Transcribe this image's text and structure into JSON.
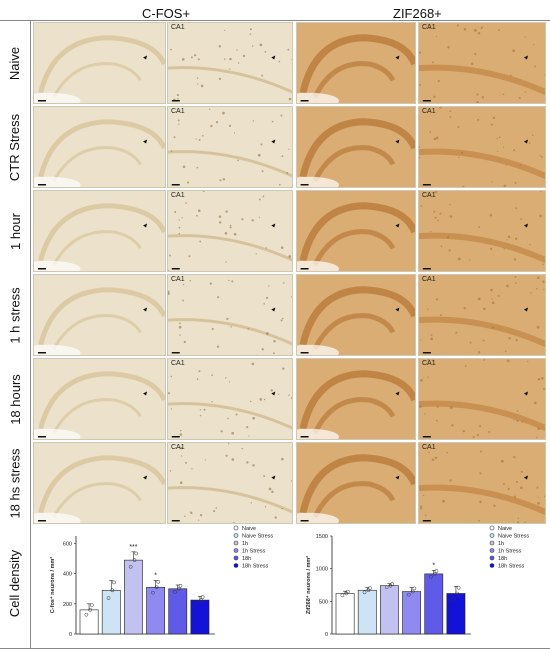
{
  "headers": {
    "left": "C-FOS+",
    "right": "ZIF268+"
  },
  "rows": [
    "Naive",
    "CTR Stress",
    "1 hour",
    "1 h stress",
    "18 hours",
    "18 hs stress",
    "Cell density"
  ],
  "panel_label": "CA1",
  "colors": {
    "cfos_bg": "#ece2cc",
    "zif_bg": "#d9ad73"
  },
  "charts": [
    {
      "ylabel": "C-fos⁺ neurons / mm²",
      "yticks": [
        "0",
        "200",
        "400",
        "600"
      ],
      "ylim": [
        0,
        650
      ],
      "legend": [
        "Naive",
        "Naive Stress",
        "1h",
        "1h Stress",
        "18h",
        "18h Stress"
      ],
      "significance": [
        "",
        "",
        "***",
        "*",
        "",
        ""
      ]
    },
    {
      "ylabel": "Zif268⁺ neurons / mm²",
      "yticks": [
        "0",
        "500",
        "1000",
        "1500"
      ],
      "ylim": [
        0,
        1500
      ],
      "legend": [
        "Naive",
        "Naive Stress",
        "1h",
        "1h Stress",
        "18h",
        "18h Stress"
      ],
      "significance": [
        "",
        "",
        "",
        "",
        "*",
        ""
      ]
    }
  ],
  "chart_data": [
    {
      "type": "bar",
      "categories": [
        "Naive",
        "Naive Stress",
        "1h",
        "1h Stress",
        "18h",
        "18h Stress"
      ],
      "values": [
        160,
        290,
        490,
        310,
        300,
        225
      ],
      "errors": [
        40,
        65,
        55,
        45,
        25,
        25
      ],
      "colors": [
        "#ffffff",
        "#cfe3f7",
        "#c3c1ef",
        "#8f8af0",
        "#5f5ae8",
        "#1412d6"
      ],
      "ylabel": "C-fos⁺ neurons / mm²",
      "ylim": [
        0,
        650
      ]
    },
    {
      "type": "bar",
      "categories": [
        "Naive",
        "Naive Stress",
        "1h",
        "1h Stress",
        "18h",
        "18h Stress"
      ],
      "values": [
        620,
        670,
        740,
        650,
        920,
        620
      ],
      "errors": [
        35,
        40,
        30,
        60,
        55,
        110
      ],
      "colors": [
        "#ffffff",
        "#cfe3f7",
        "#c3c1ef",
        "#8f8af0",
        "#5f5ae8",
        "#1412d6"
      ],
      "ylabel": "Zif268⁺ neurons / mm²",
      "ylim": [
        0,
        1500
      ]
    }
  ]
}
